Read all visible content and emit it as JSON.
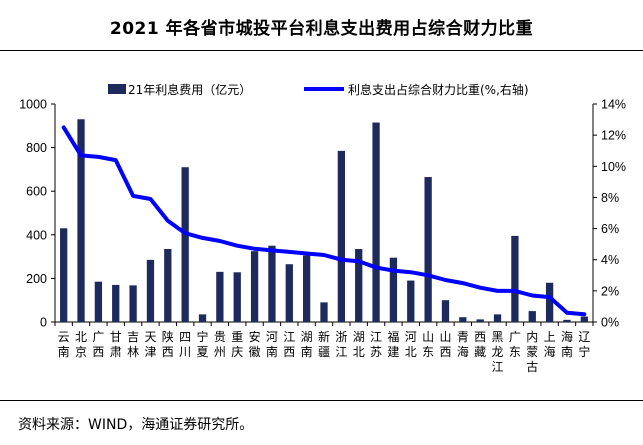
{
  "title": "2021 年各省市城投平台利息支出费用占综合财力比重",
  "source": "资料来源：WIND，海通证券研究所。",
  "chart_data": {
    "type": "bar+line",
    "categories": [
      "云南",
      "北京",
      "广西",
      "甘肃",
      "吉林",
      "天津",
      "陕西",
      "四川",
      "宁夏",
      "贵州",
      "重庆",
      "安徽",
      "河南",
      "江西",
      "湖南",
      "新疆",
      "浙江",
      "湖北",
      "江苏",
      "福建",
      "河北",
      "山东",
      "山西",
      "青海",
      "西藏",
      "黑龙江",
      "广东",
      "内蒙古",
      "上海",
      "海南",
      "辽宁"
    ],
    "category_glyphs": [
      [
        "云",
        "南"
      ],
      [
        "北",
        "京"
      ],
      [
        "广",
        "西"
      ],
      [
        "甘",
        "肃"
      ],
      [
        "吉",
        "林"
      ],
      [
        "天",
        "津"
      ],
      [
        "陕",
        "西"
      ],
      [
        "四",
        "川"
      ],
      [
        "宁",
        "夏"
      ],
      [
        "贵",
        "州"
      ],
      [
        "重",
        "庆"
      ],
      [
        "安",
        "徽"
      ],
      [
        "河",
        "南"
      ],
      [
        "江",
        "西"
      ],
      [
        "湖",
        "南"
      ],
      [
        "新",
        "疆"
      ],
      [
        "浙",
        "江"
      ],
      [
        "湖",
        "北"
      ],
      [
        "江",
        "苏"
      ],
      [
        "福",
        "建"
      ],
      [
        "河",
        "北"
      ],
      [
        "山",
        "东"
      ],
      [
        "山",
        "西"
      ],
      [
        "青",
        "海"
      ],
      [
        "西",
        "藏"
      ],
      [
        "黑",
        "龙",
        "江"
      ],
      [
        "广",
        "东"
      ],
      [
        "内",
        "蒙",
        "古"
      ],
      [
        "上",
        "海"
      ],
      [
        "海",
        "南"
      ],
      [
        "辽",
        "宁"
      ]
    ],
    "series": [
      {
        "name": "21年利息费用（亿元）",
        "axis": "left",
        "kind": "bar",
        "color": "#1f2a5c",
        "values": [
          430,
          930,
          185,
          170,
          168,
          285,
          335,
          710,
          35,
          230,
          228,
          325,
          350,
          265,
          305,
          90,
          785,
          335,
          915,
          295,
          190,
          665,
          100,
          22,
          12,
          35,
          395,
          50,
          180,
          10,
          25
        ]
      },
      {
        "name": "利息支出占综合财力比重(%,右轴)",
        "axis": "right",
        "kind": "line",
        "color": "#0000ff",
        "values": [
          12.5,
          10.7,
          10.6,
          10.4,
          8.1,
          7.9,
          6.5,
          5.7,
          5.4,
          5.2,
          4.9,
          4.7,
          4.6,
          4.5,
          4.4,
          4.3,
          4.0,
          3.9,
          3.5,
          3.3,
          3.2,
          3.0,
          2.7,
          2.5,
          2.2,
          2.0,
          2.0,
          1.7,
          1.6,
          0.6,
          0.5
        ]
      }
    ],
    "y_left": {
      "ticks": [
        0,
        200,
        400,
        600,
        800,
        1000
      ],
      "ylim": [
        0,
        1000
      ]
    },
    "y_right": {
      "ticks": [
        "0%",
        "2%",
        "4%",
        "6%",
        "8%",
        "10%",
        "12%",
        "14%"
      ],
      "ylim": [
        0,
        14
      ]
    },
    "legend_position": "top",
    "grid": false
  }
}
